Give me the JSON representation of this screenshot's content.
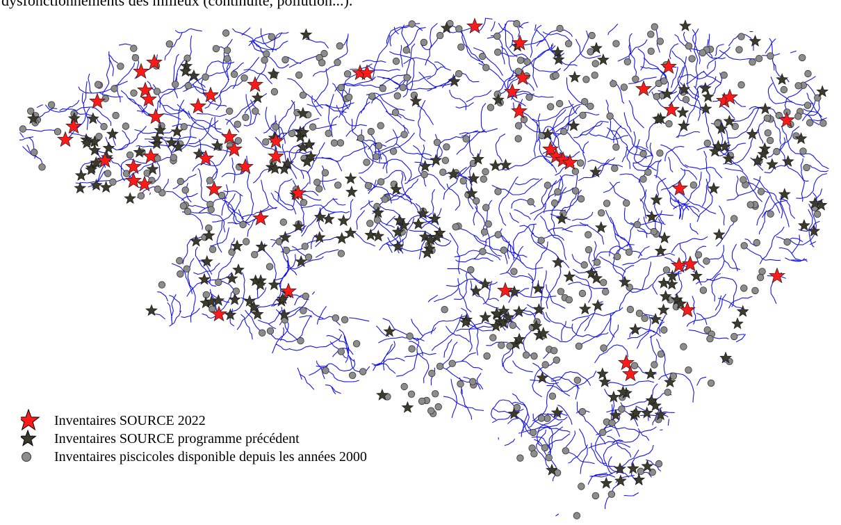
{
  "caption": "dysfonctionnements des milieux (continuité, pollution...).",
  "legend": {
    "items": [
      {
        "symbol": "red-star-icon",
        "color": "#ff1a1a",
        "label": "Inventaires SOURCE 2022"
      },
      {
        "symbol": "dark-star-icon",
        "color": "#3d3a2e",
        "label": "Inventaires SOURCE programme précédent"
      },
      {
        "symbol": "grey-circle-icon",
        "color": "#8c8c8c",
        "label": "Inventaires piscicoles disponible depuis les années 2000"
      }
    ]
  },
  "colors": {
    "river": "#1414e6",
    "red_star": "#ff1a1a",
    "dark_star": "#3d3a2e",
    "grey_circle": "#8c8c8c"
  }
}
